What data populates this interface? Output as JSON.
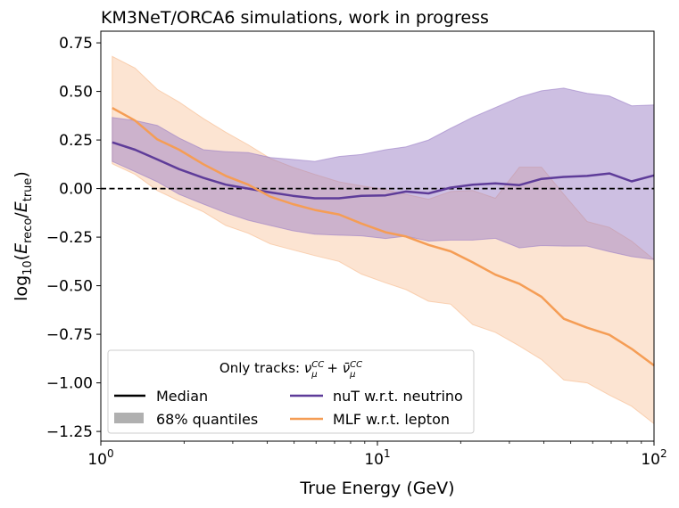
{
  "chart_data": {
    "type": "area",
    "title": "KM3NeT/ORCA6 simulations, work in progress",
    "xlabel": "True Energy (GeV)",
    "ylabel": {
      "prefix": "log",
      "prefix_sub": "10",
      "open": "(",
      "num": "E",
      "num_sub": "reco",
      "slash": "/",
      "den": "E",
      "den_sub": "true",
      "close": ")"
    },
    "xscale": "log",
    "xlim": [
      1,
      100
    ],
    "ylim": [
      -1.3,
      0.81
    ],
    "grid": false,
    "x_ticks": [
      {
        "value": 1,
        "base": "10",
        "exp": "0"
      },
      {
        "value": 10,
        "base": "10",
        "exp": "1"
      },
      {
        "value": 100,
        "base": "10",
        "exp": "2"
      }
    ],
    "y_ticks": [
      {
        "value": 0.75,
        "label": "0.75"
      },
      {
        "value": 0.5,
        "label": "0.50"
      },
      {
        "value": 0.25,
        "label": "0.25"
      },
      {
        "value": 0,
        "label": "0.00"
      },
      {
        "value": -0.25,
        "label": "−0.25"
      },
      {
        "value": -0.5,
        "label": "−0.50"
      },
      {
        "value": -0.75,
        "label": "−0.75"
      },
      {
        "value": -1.0,
        "label": "−1.00"
      },
      {
        "value": -1.25,
        "label": "−1.25"
      }
    ],
    "reference_line": {
      "y": 0,
      "style": "dashed",
      "color": "#000000"
    },
    "x": [
      1.1,
      1.33,
      1.6,
      1.92,
      2.35,
      2.83,
      3.41,
      4.1,
      4.94,
      5.94,
      7.26,
      8.75,
      10.7,
      12.7,
      15.3,
      18.4,
      22.1,
      26.7,
      32.6,
      39.2,
      47.2,
      57.3,
      69.0,
      83.0,
      100
    ],
    "series": [
      {
        "name": "nuT w.r.t. neutrino",
        "color": "#5e3c99",
        "band_color": "#9b7fc6",
        "median": [
          0.238,
          0.2,
          0.15,
          0.1,
          0.055,
          0.02,
          0.0,
          -0.02,
          -0.037,
          -0.05,
          -0.05,
          -0.037,
          -0.035,
          -0.015,
          -0.025,
          0.005,
          0.02,
          0.027,
          0.018,
          0.05,
          0.06,
          0.065,
          0.078,
          0.037,
          0.068
        ],
        "upper": [
          0.366,
          0.35,
          0.325,
          0.26,
          0.2,
          0.19,
          0.185,
          0.16,
          0.15,
          0.14,
          0.165,
          0.175,
          0.2,
          0.215,
          0.25,
          0.31,
          0.367,
          0.417,
          0.47,
          0.503,
          0.517,
          0.49,
          0.476,
          0.426,
          0.43
        ],
        "lower": [
          0.14,
          0.087,
          0.035,
          -0.03,
          -0.08,
          -0.125,
          -0.163,
          -0.19,
          -0.217,
          -0.235,
          -0.24,
          -0.243,
          -0.257,
          -0.245,
          -0.27,
          -0.265,
          -0.265,
          -0.256,
          -0.305,
          -0.293,
          -0.296,
          -0.296,
          -0.325,
          -0.35,
          -0.365
        ]
      },
      {
        "name": "MLF w.r.t. lepton",
        "color": "#f59d55",
        "band_color": "#f7b98a",
        "median": [
          0.415,
          0.35,
          0.253,
          0.2,
          0.125,
          0.065,
          0.02,
          -0.042,
          -0.08,
          -0.11,
          -0.133,
          -0.18,
          -0.225,
          -0.247,
          -0.29,
          -0.323,
          -0.38,
          -0.443,
          -0.49,
          -0.557,
          -0.67,
          -0.716,
          -0.753,
          -0.825,
          -0.91
        ],
        "upper": [
          0.68,
          0.62,
          0.51,
          0.445,
          0.36,
          0.29,
          0.225,
          0.155,
          0.11,
          0.073,
          0.035,
          0.014,
          -0.005,
          -0.03,
          -0.055,
          -0.015,
          -0.01,
          -0.05,
          0.11,
          0.11,
          -0.03,
          -0.17,
          -0.2,
          -0.27,
          -0.365
        ],
        "lower": [
          0.128,
          0.073,
          -0.01,
          -0.064,
          -0.12,
          -0.19,
          -0.23,
          -0.285,
          -0.315,
          -0.345,
          -0.375,
          -0.44,
          -0.485,
          -0.52,
          -0.58,
          -0.595,
          -0.7,
          -0.74,
          -0.81,
          -0.88,
          -0.985,
          -1.0,
          -1.063,
          -1.12,
          -1.21
        ]
      }
    ],
    "legend": {
      "placement": "lower-left",
      "title": {
        "text": "Only tracks: ",
        "nu": "ν",
        "sup": "CC",
        "sub": "μ",
        "plus": " + ",
        "nubar": "ν̄"
      },
      "entries": [
        {
          "label": "Median",
          "kind": "line",
          "color": "#000000"
        },
        {
          "label": "nuT w.r.t. neutrino",
          "kind": "line",
          "color": "#5e3c99"
        },
        {
          "label": "68% quantiles",
          "kind": "patch",
          "color": "#b0b0b0"
        },
        {
          "label": "MLF w.r.t. lepton",
          "kind": "line",
          "color": "#f59d55"
        }
      ]
    }
  }
}
